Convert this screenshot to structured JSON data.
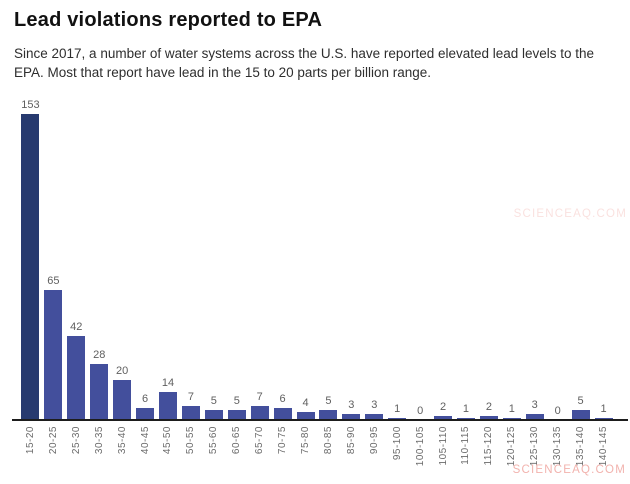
{
  "header": {
    "title": "Lead violations reported to EPA",
    "subtitle_lines": [
      "Since 2017, a number of water systems across the U.S. have reported elevated lead levels to the",
      "EPA. Most that report have lead in the 15 to 20 parts per billion range."
    ]
  },
  "watermark": {
    "text": "SCIENCEAQ.COM"
  },
  "chart_data": {
    "type": "bar",
    "title": "Lead violations reported to EPA",
    "xlabel": "",
    "ylabel": "",
    "categories": [
      "15-20",
      "20-25",
      "25-30",
      "30-35",
      "35-40",
      "40-45",
      "45-50",
      "50-55",
      "55-60",
      "60-65",
      "65-70",
      "70-75",
      "75-80",
      "80-85",
      "85-90",
      "90-95",
      "95-100",
      "100-105",
      "105-110",
      "110-115",
      "115-120",
      "120-125",
      "125-130",
      "130-135",
      "135-140",
      "140-145"
    ],
    "values": [
      153,
      65,
      42,
      28,
      20,
      6,
      14,
      7,
      5,
      5,
      7,
      6,
      4,
      5,
      3,
      3,
      1,
      0,
      2,
      1,
      2,
      1,
      3,
      0,
      5,
      1
    ],
    "ylim": [
      0,
      160
    ],
    "grid": "off",
    "legend": "none",
    "y_axis_visible": false,
    "value_labels": true,
    "highlight_index": 0,
    "highlight_color": "#273a6f",
    "bar_color": "#434f9c"
  }
}
